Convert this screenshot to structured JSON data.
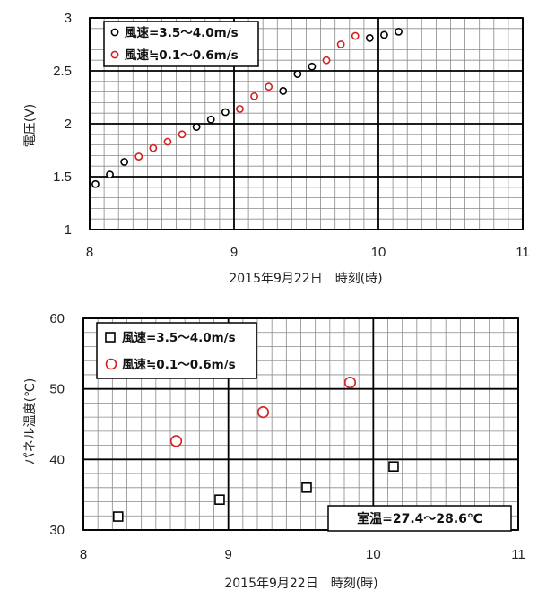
{
  "chart_data": [
    {
      "type": "scatter",
      "xlabel": "2015年9月22日　時刻(時)",
      "ylabel": "電圧(V)",
      "xlim": [
        8,
        11
      ],
      "ylim": [
        1,
        3
      ],
      "x_ticks": [
        "8",
        "9",
        "10",
        "11"
      ],
      "y_ticks": [
        "1",
        "1.5",
        "2",
        "2.5",
        "3"
      ],
      "x_ticks_val": [
        8,
        9,
        10,
        11
      ],
      "y_ticks_val": [
        1,
        1.5,
        2,
        2.5,
        3
      ],
      "grid": true,
      "legend_position": "top-left",
      "series": [
        {
          "name": "風速=3.5〜4.0m/s",
          "marker": "circle",
          "color": "#000000",
          "points": [
            [
              8.04,
              1.43
            ],
            [
              8.14,
              1.52
            ],
            [
              8.24,
              1.64
            ],
            [
              8.74,
              1.97
            ],
            [
              8.84,
              2.04
            ],
            [
              8.94,
              2.11
            ],
            [
              9.34,
              2.31
            ],
            [
              9.44,
              2.47
            ],
            [
              9.54,
              2.54
            ],
            [
              9.94,
              2.81
            ],
            [
              10.04,
              2.84
            ],
            [
              10.14,
              2.87
            ]
          ]
        },
        {
          "name": "風速≒0.1〜0.6m/s",
          "marker": "circle",
          "color": "#d42020",
          "points": [
            [
              8.34,
              1.69
            ],
            [
              8.44,
              1.77
            ],
            [
              8.54,
              1.83
            ],
            [
              8.64,
              1.9
            ],
            [
              9.04,
              2.14
            ],
            [
              9.14,
              2.26
            ],
            [
              9.24,
              2.35
            ],
            [
              9.64,
              2.6
            ],
            [
              9.74,
              2.75
            ],
            [
              9.84,
              2.83
            ]
          ]
        }
      ]
    },
    {
      "type": "scatter",
      "xlabel": "2015年9月22日　時刻(時)",
      "ylabel": "パネル温度(℃)",
      "xlim": [
        8,
        11
      ],
      "ylim": [
        30,
        60
      ],
      "x_ticks": [
        "8",
        "9",
        "10",
        "11"
      ],
      "y_ticks": [
        "30",
        "40",
        "50",
        "60"
      ],
      "x_ticks_val": [
        8,
        9,
        10,
        11
      ],
      "y_ticks_val": [
        30,
        40,
        50,
        60
      ],
      "grid": true,
      "legend_position": "top-left",
      "annotation": "室温=27.4〜28.6℃",
      "series": [
        {
          "name": "風速=3.5〜4.0m/s",
          "marker": "square",
          "color": "#000000",
          "points": [
            [
              8.24,
              31.9
            ],
            [
              8.94,
              34.3
            ],
            [
              9.54,
              36.0
            ],
            [
              10.14,
              39.0
            ]
          ]
        },
        {
          "name": "風速≒0.1〜0.6m/s",
          "marker": "circle",
          "color": "#d42020",
          "points": [
            [
              8.64,
              42.6
            ],
            [
              9.24,
              46.7
            ],
            [
              9.84,
              50.9
            ]
          ]
        }
      ]
    }
  ]
}
